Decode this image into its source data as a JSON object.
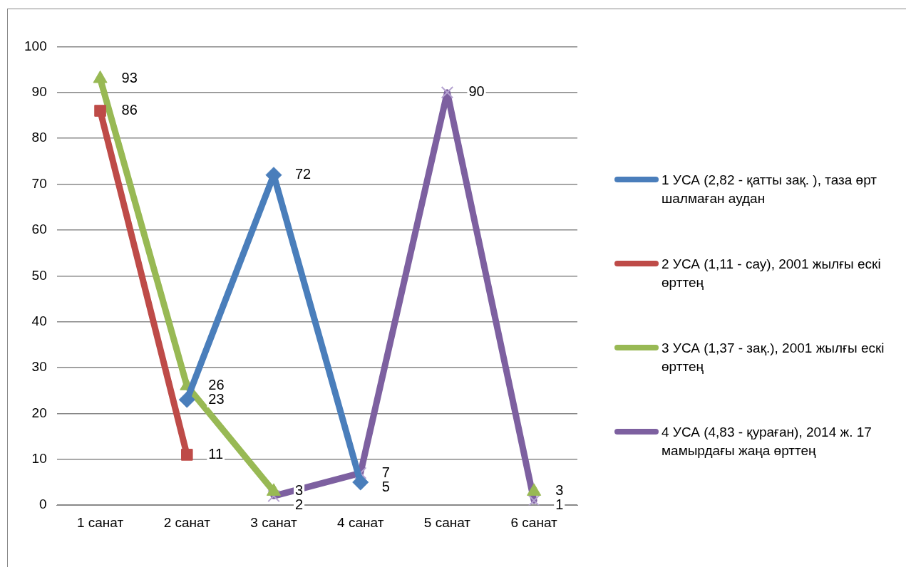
{
  "chart_data": {
    "type": "line",
    "categories": [
      "1 санат",
      "2 санат",
      "3 санат",
      "4 санат",
      "5 санат",
      "6 санат"
    ],
    "series": [
      {
        "name": "1 УСА (2,82 - қатты  зақ. ), таза өрт шалмаған  аудан",
        "color": "#4a7ebb",
        "marker": "diamond",
        "values": [
          null,
          23,
          72,
          5,
          null,
          null
        ]
      },
      {
        "name": "2 УСА (1,11 - сау), 2001 жылғы ескі өрттең",
        "color": "#be4b48",
        "marker": "square",
        "values": [
          86,
          11,
          null,
          null,
          null,
          null
        ]
      },
      {
        "name": "3 УСА (1,37 - зақ.),  2001 жылғы ескі өрттең",
        "color": "#98b954",
        "marker": "triangle",
        "values": [
          93,
          26,
          3,
          null,
          null,
          3
        ]
      },
      {
        "name": "4 УСА (4,83 - қураған),  2014 ж. 17 мамырдағы  жаңа өрттең",
        "color": "#7d60a0",
        "marker": "cross",
        "values": [
          null,
          null,
          2,
          7,
          90,
          1
        ]
      }
    ],
    "ylim": [
      0,
      100
    ],
    "yticks": [
      0,
      10,
      20,
      30,
      40,
      50,
      60,
      70,
      80,
      90,
      100
    ],
    "grid": "y",
    "legend": "right",
    "data_labels": true,
    "line_style": "solid"
  }
}
